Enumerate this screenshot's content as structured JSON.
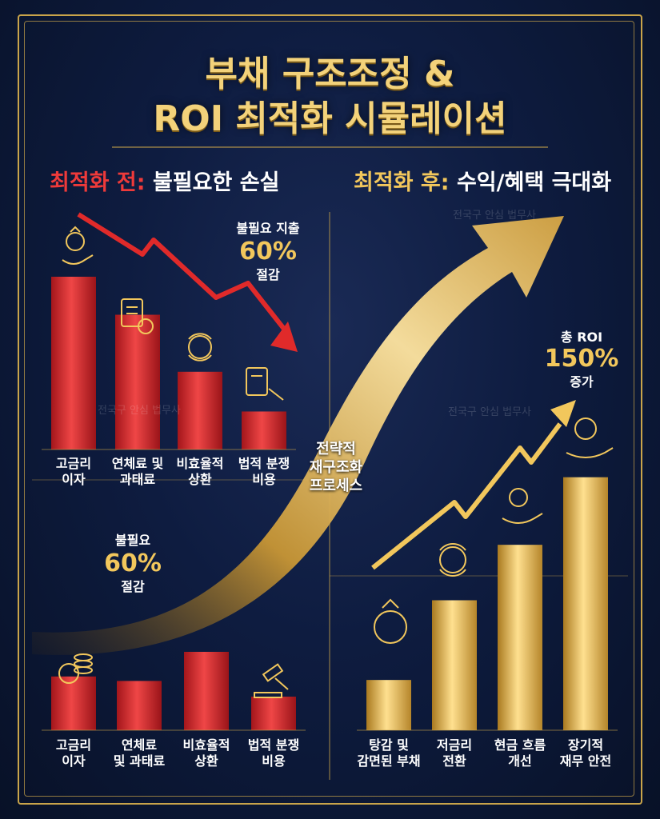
{
  "title_line1": "부채 구조조정 &",
  "title_line2": "ROI 최적화 시뮬레이션",
  "before": {
    "head_tag": "최적화 전:",
    "head_text": "불필요한 손실",
    "callout_top": {
      "pre": "불필요 지출",
      "value": "60%",
      "post": "절감"
    },
    "callout_bottom": {
      "pre": "불필요",
      "value": "60%",
      "post": "절감"
    },
    "top_labels": [
      "고금리\n이자",
      "연체료 및\n과태료",
      "비효율적\n상환",
      "법적 분쟁\n비용"
    ],
    "bottom_labels": [
      "고금리\n이자",
      "연체료\n및 과태료",
      "비효율적\n상환",
      "법적 분쟁\n비용"
    ]
  },
  "after": {
    "head_tag": "최적화 후:",
    "head_text": "수익/혜택 극대화",
    "callout": {
      "pre": "총 ROI",
      "value": "150%",
      "post": "증가"
    },
    "labels": [
      "탕감 및\n감면된 부채",
      "저금리\n전환",
      "현금 흐름\n개선",
      "장기적\n재무 안전"
    ]
  },
  "middle_label": "전략적\n재구조화\n프로세스",
  "watermark": "전국구 안심 법무사",
  "colors": {
    "red": "#e23b3b",
    "gold": "#f2c75c",
    "frame": "#c9a44a",
    "bg": "#0e1c40"
  },
  "chart_data": [
    {
      "type": "bar",
      "categories": [
        "고금리 이자",
        "연체료 및 과태료",
        "비효율적 상환",
        "법적 분쟁 비용"
      ],
      "values": [
        100,
        78,
        45,
        22
      ],
      "title": "",
      "ylim": [
        0,
        100
      ]
    },
    {
      "type": "bar",
      "categories": [
        "고금리 이자",
        "연체료 및 과태료",
        "비효율적 상환",
        "법적 분쟁 비용"
      ],
      "values": [
        48,
        44,
        70,
        30
      ],
      "title": "",
      "ylim": [
        0,
        100
      ]
    },
    {
      "type": "bar",
      "categories": [
        "탕감 및 감면된 부채",
        "저금리 전환",
        "현금 흐름 개선",
        "장기적 재무 안전"
      ],
      "values": [
        29,
        75,
        107,
        146
      ],
      "title": "",
      "ylim": [
        0,
        150
      ]
    }
  ]
}
